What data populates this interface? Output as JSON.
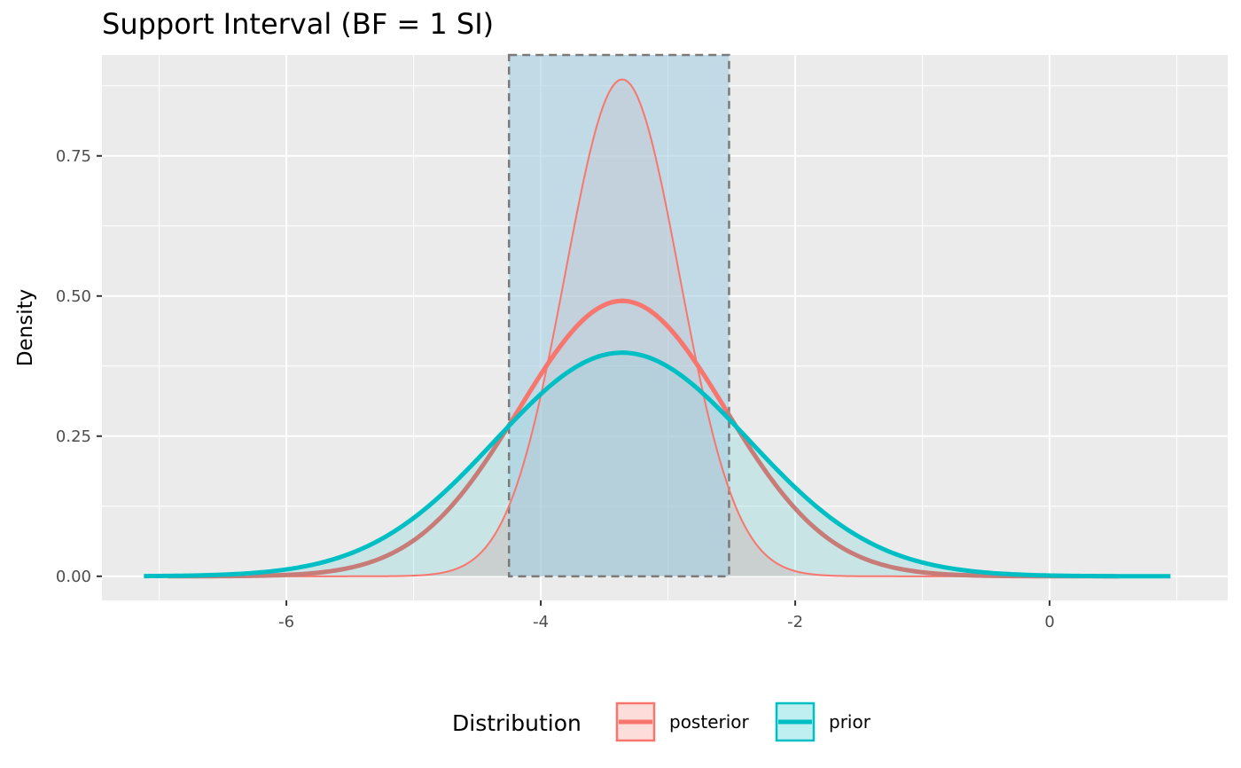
{
  "chart_data": {
    "type": "area",
    "title": "Support Interval (BF = 1 SI)",
    "xlabel": "",
    "ylabel": "Density",
    "xlim": [
      -7.45,
      1.4
    ],
    "ylim": [
      -0.043,
      0.93
    ],
    "x_ticks": [
      -6,
      -4,
      -2,
      0
    ],
    "x_tick_labels": [
      "-6",
      "-4",
      "-2",
      "0"
    ],
    "y_ticks": [
      0,
      0.25,
      0.5,
      0.75
    ],
    "y_tick_labels": [
      "0.00",
      "0.25",
      "0.50",
      "0.75"
    ],
    "grid": true,
    "legend": {
      "title": "Distribution",
      "position": "bottom"
    },
    "series": [
      {
        "name": "posterior",
        "color": "#F8766D",
        "fill": "#F8766D",
        "mean": -3.36,
        "sd": 0.812,
        "x_range": [
          -6.93,
          0.55
        ]
      },
      {
        "name": "prior",
        "color": "#00BFC4",
        "fill": "#00BFC4",
        "mean": -3.36,
        "sd": 1.0,
        "x_range": [
          -7.12,
          0.95
        ]
      }
    ],
    "support_interval": {
      "BF": 1,
      "lower": -4.25,
      "upper": -2.52,
      "fill": "#a6cee3"
    },
    "posterior_fill_outline": {
      "mean": -3.36,
      "sd": 0.45
    }
  }
}
